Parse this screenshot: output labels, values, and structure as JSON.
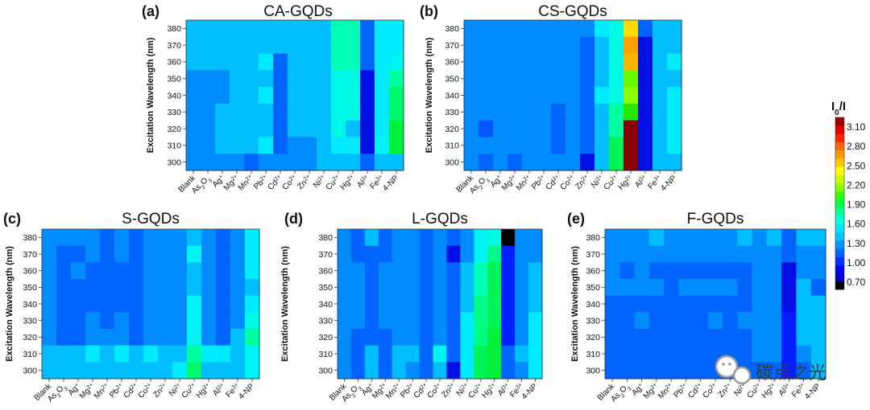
{
  "chart_data": [
    {
      "id": "a",
      "letter": "(a)",
      "type": "heatmap",
      "title": "CA-GQDs",
      "ylabel": "Excitation Wavelength (nm)",
      "yticks": [
        380,
        370,
        360,
        350,
        340,
        330,
        320,
        310,
        300
      ],
      "categories": [
        "Blank",
        "As2O3",
        "Ag+",
        "Mg2+",
        "Mn2+",
        "Pb2+",
        "Cd2+",
        "Co2+",
        "Zn2+",
        "Ni2+",
        "Cu2+",
        "Hg2+",
        "Al3+",
        "Fe3+",
        "4-NP"
      ],
      "values": [
        [
          1.18,
          1.18,
          1.18,
          1.18,
          1.18,
          1.18,
          1.18,
          1.18,
          1.18,
          1.18,
          1.55,
          1.55,
          1.0,
          1.3,
          1.3
        ],
        [
          1.18,
          1.18,
          1.18,
          1.18,
          1.18,
          1.18,
          1.18,
          1.18,
          1.18,
          1.18,
          1.55,
          1.55,
          1.0,
          1.3,
          1.3
        ],
        [
          1.18,
          1.18,
          1.18,
          1.18,
          1.18,
          1.3,
          1.0,
          1.18,
          1.18,
          1.18,
          1.55,
          1.55,
          1.0,
          1.3,
          1.35
        ],
        [
          1.08,
          1.08,
          1.08,
          1.18,
          1.18,
          1.18,
          1.0,
          1.18,
          1.18,
          1.18,
          1.4,
          1.4,
          0.85,
          1.3,
          1.6
        ],
        [
          1.08,
          1.08,
          1.08,
          1.18,
          1.18,
          1.3,
          1.0,
          1.18,
          1.18,
          1.18,
          1.4,
          1.4,
          0.85,
          1.3,
          1.7
        ],
        [
          1.08,
          1.08,
          1.18,
          1.18,
          1.18,
          1.18,
          1.0,
          1.18,
          1.18,
          1.18,
          1.4,
          1.4,
          0.85,
          1.3,
          1.7
        ],
        [
          1.08,
          1.08,
          1.18,
          1.18,
          1.18,
          1.18,
          1.0,
          1.18,
          1.18,
          1.18,
          1.4,
          1.18,
          0.85,
          1.3,
          1.8
        ],
        [
          1.08,
          1.08,
          1.18,
          1.18,
          1.18,
          1.3,
          1.0,
          1.08,
          1.08,
          1.18,
          1.3,
          1.3,
          0.85,
          1.35,
          1.8
        ],
        [
          1.08,
          1.08,
          1.08,
          1.08,
          1.0,
          1.08,
          1.08,
          1.08,
          1.08,
          1.18,
          1.18,
          1.18,
          1.0,
          1.18,
          1.18
        ]
      ]
    },
    {
      "id": "b",
      "letter": "(b)",
      "type": "heatmap",
      "title": "CS-GQDs",
      "ylabel": "Excitation Wavelength (nm)",
      "yticks": [
        380,
        370,
        360,
        350,
        340,
        330,
        320,
        310,
        300
      ],
      "categories": [
        "Blank",
        "As2O3",
        "Ag+",
        "Mg2+",
        "Mn2+",
        "Pb2+",
        "Cd2+",
        "Co2+",
        "Zn2+",
        "Ni2+",
        "Cu2+",
        "Hg2+",
        "Al3+",
        "Fe3+",
        "4-NP"
      ],
      "values": [
        [
          1.08,
          1.08,
          1.08,
          1.08,
          1.08,
          1.08,
          1.08,
          1.08,
          1.08,
          1.3,
          1.4,
          2.5,
          1.0,
          1.18,
          1.18
        ],
        [
          1.08,
          1.08,
          1.08,
          1.08,
          1.08,
          1.08,
          1.08,
          1.08,
          1.0,
          1.18,
          1.4,
          2.65,
          0.85,
          1.18,
          1.18
        ],
        [
          1.08,
          1.08,
          1.08,
          1.08,
          1.08,
          1.08,
          1.08,
          1.08,
          1.0,
          1.18,
          1.4,
          2.6,
          0.85,
          1.18,
          1.3
        ],
        [
          1.08,
          1.08,
          1.08,
          1.08,
          1.08,
          1.08,
          1.08,
          1.08,
          1.0,
          1.18,
          1.4,
          2.05,
          0.85,
          1.18,
          1.18
        ],
        [
          1.08,
          1.08,
          1.08,
          1.08,
          1.08,
          1.08,
          1.08,
          1.08,
          1.0,
          1.3,
          1.4,
          2.1,
          0.85,
          1.18,
          1.3
        ],
        [
          1.08,
          1.08,
          1.08,
          1.08,
          1.08,
          1.08,
          1.0,
          1.08,
          1.0,
          1.18,
          1.6,
          1.95,
          0.85,
          1.18,
          1.3
        ],
        [
          1.08,
          0.98,
          1.08,
          1.08,
          1.08,
          1.08,
          1.0,
          1.08,
          1.0,
          1.18,
          1.6,
          3.2,
          0.85,
          1.18,
          1.3
        ],
        [
          1.08,
          1.08,
          1.08,
          1.08,
          1.08,
          1.08,
          1.0,
          1.08,
          1.0,
          1.18,
          1.75,
          3.2,
          0.85,
          1.18,
          1.3
        ],
        [
          1.08,
          1.0,
          1.08,
          1.0,
          1.08,
          1.08,
          1.08,
          1.08,
          0.85,
          1.18,
          1.75,
          3.2,
          0.85,
          1.18,
          1.18
        ]
      ]
    },
    {
      "id": "c",
      "letter": "(c)",
      "type": "heatmap",
      "title": "S-GQDs",
      "ylabel": "Excitation Wavelength (nm)",
      "yticks": [
        380,
        370,
        360,
        350,
        340,
        330,
        320,
        310,
        300
      ],
      "categories": [
        "Blank",
        "As2O3",
        "Ag+",
        "Mg2+",
        "Mn2+",
        "Pb2+",
        "Cd2+",
        "Co2+",
        "Zn2+",
        "Ni2+",
        "Cu2+",
        "Hg2+",
        "Al3+",
        "Fe3+",
        "4-NP"
      ],
      "values": [
        [
          1.08,
          1.08,
          1.08,
          1.08,
          1.0,
          1.08,
          1.0,
          1.08,
          1.08,
          1.08,
          1.18,
          1.08,
          1.0,
          1.08,
          1.3
        ],
        [
          1.08,
          1.0,
          1.0,
          1.08,
          1.0,
          1.08,
          1.0,
          1.08,
          1.08,
          1.08,
          1.35,
          1.08,
          1.0,
          1.08,
          1.3
        ],
        [
          1.08,
          1.0,
          1.08,
          1.0,
          1.0,
          1.0,
          1.0,
          1.08,
          1.08,
          1.08,
          1.18,
          1.08,
          1.0,
          1.08,
          1.3
        ],
        [
          1.08,
          1.0,
          1.0,
          1.0,
          1.0,
          1.0,
          1.0,
          1.08,
          1.08,
          1.08,
          1.18,
          1.08,
          1.0,
          1.08,
          1.18
        ],
        [
          1.08,
          1.0,
          1.0,
          1.0,
          1.0,
          1.0,
          1.0,
          1.08,
          1.08,
          1.08,
          1.35,
          1.08,
          1.0,
          1.08,
          1.3
        ],
        [
          1.08,
          1.0,
          1.0,
          1.08,
          1.0,
          1.08,
          1.0,
          1.08,
          1.08,
          1.08,
          1.35,
          1.08,
          1.0,
          1.08,
          1.4
        ],
        [
          1.08,
          1.0,
          1.0,
          1.08,
          1.08,
          1.08,
          1.0,
          1.08,
          1.08,
          1.08,
          1.35,
          1.08,
          1.0,
          1.18,
          1.6
        ],
        [
          1.18,
          1.18,
          1.18,
          1.3,
          1.18,
          1.3,
          1.18,
          1.3,
          1.18,
          1.18,
          1.6,
          1.3,
          1.3,
          1.18,
          1.35
        ],
        [
          1.18,
          1.18,
          1.18,
          1.18,
          1.18,
          1.18,
          1.18,
          1.18,
          1.18,
          1.3,
          1.7,
          1.18,
          1.18,
          1.18,
          1.35
        ]
      ]
    },
    {
      "id": "d",
      "letter": "(d)",
      "type": "heatmap",
      "title": "L-GQDs",
      "ylabel": "Excitation Wavelength (nm)",
      "yticks": [
        380,
        370,
        360,
        350,
        340,
        330,
        320,
        310,
        300
      ],
      "categories": [
        "Blank",
        "As2O3",
        "Ag+",
        "Mg2+",
        "Mn2+",
        "Pb2+",
        "Cd2+",
        "Co2+",
        "Zn2+",
        "Ni2+",
        "Cu2+",
        "Hg2+",
        "Al3+",
        "Fe3+",
        "4-NP"
      ],
      "values": [
        [
          1.08,
          1.0,
          1.18,
          1.0,
          1.08,
          1.08,
          1.0,
          1.08,
          1.0,
          1.08,
          1.35,
          1.4,
          0.7,
          1.08,
          1.08
        ],
        [
          1.08,
          1.0,
          1.0,
          1.0,
          1.08,
          1.08,
          1.0,
          1.08,
          0.85,
          1.08,
          1.35,
          1.65,
          0.9,
          1.08,
          1.08
        ],
        [
          1.08,
          1.08,
          1.0,
          1.08,
          1.08,
          1.08,
          1.0,
          1.08,
          1.0,
          1.18,
          1.55,
          1.75,
          0.9,
          1.08,
          1.18
        ],
        [
          1.08,
          1.08,
          1.0,
          1.08,
          1.08,
          1.08,
          1.0,
          1.08,
          1.0,
          1.18,
          1.55,
          1.75,
          0.9,
          1.08,
          1.18
        ],
        [
          1.08,
          1.08,
          1.0,
          1.08,
          1.08,
          1.08,
          1.0,
          1.08,
          1.0,
          1.18,
          1.65,
          1.75,
          0.9,
          1.08,
          1.18
        ],
        [
          1.08,
          1.08,
          1.0,
          1.08,
          1.08,
          1.08,
          1.0,
          1.08,
          1.0,
          1.3,
          1.65,
          1.75,
          0.9,
          1.08,
          1.3
        ],
        [
          1.08,
          1.0,
          1.0,
          1.0,
          1.08,
          1.08,
          1.0,
          1.08,
          1.0,
          1.3,
          1.65,
          1.8,
          0.9,
          1.08,
          1.3
        ],
        [
          1.08,
          1.0,
          1.18,
          1.0,
          1.18,
          1.18,
          1.0,
          1.35,
          1.0,
          1.3,
          1.75,
          1.8,
          1.0,
          1.18,
          1.3
        ],
        [
          1.08,
          1.0,
          1.18,
          1.0,
          1.18,
          1.08,
          1.0,
          1.18,
          0.85,
          1.3,
          1.75,
          1.8,
          1.0,
          1.08,
          1.3
        ]
      ]
    },
    {
      "id": "e",
      "letter": "(e)",
      "type": "heatmap",
      "title": "F-GQDs",
      "ylabel": "Excitation Wavelength (nm)",
      "yticks": [
        380,
        370,
        360,
        350,
        340,
        330,
        320,
        310,
        300
      ],
      "categories": [
        "Blank",
        "As2O3",
        "Ag+",
        "Mg2+",
        "Mn2+",
        "Pb2+",
        "Cd2+",
        "Co2+",
        "Zn2+",
        "Ni2+",
        "Cu2+",
        "Hg2+",
        "Al3+",
        "Fe3+",
        "4-NP"
      ],
      "values": [
        [
          1.08,
          1.08,
          1.08,
          1.18,
          1.08,
          1.08,
          1.08,
          1.08,
          1.08,
          1.18,
          1.08,
          1.18,
          1.0,
          1.18,
          1.18
        ],
        [
          1.08,
          1.08,
          1.08,
          1.08,
          1.08,
          1.08,
          1.08,
          1.08,
          1.08,
          1.08,
          1.08,
          1.08,
          1.0,
          1.08,
          1.08
        ],
        [
          1.08,
          1.0,
          1.08,
          1.0,
          1.0,
          1.0,
          1.0,
          1.0,
          1.0,
          1.0,
          1.08,
          1.08,
          0.85,
          1.08,
          1.08
        ],
        [
          1.08,
          1.08,
          1.08,
          1.08,
          1.0,
          1.08,
          1.08,
          1.08,
          1.08,
          1.0,
          1.08,
          1.08,
          0.85,
          1.18,
          1.0
        ],
        [
          1.0,
          1.0,
          1.0,
          1.0,
          1.0,
          1.0,
          1.0,
          1.0,
          1.0,
          1.0,
          1.08,
          1.08,
          0.85,
          1.18,
          1.18
        ],
        [
          1.0,
          1.0,
          1.08,
          1.0,
          1.0,
          1.0,
          1.0,
          1.08,
          1.0,
          1.08,
          1.08,
          1.08,
          0.9,
          1.18,
          1.18
        ],
        [
          1.0,
          1.0,
          1.0,
          1.0,
          1.0,
          1.0,
          1.0,
          1.0,
          1.0,
          1.0,
          1.08,
          1.08,
          0.9,
          1.18,
          1.18
        ],
        [
          1.0,
          1.0,
          1.0,
          1.0,
          1.0,
          1.0,
          1.0,
          1.0,
          1.0,
          1.0,
          1.08,
          1.08,
          0.9,
          1.08,
          1.18
        ],
        [
          1.0,
          1.0,
          1.0,
          1.0,
          1.0,
          1.0,
          1.0,
          1.0,
          1.0,
          1.0,
          1.0,
          1.0,
          0.9,
          1.0,
          1.18
        ]
      ]
    }
  ],
  "colorbar": {
    "title": "I0/I",
    "ticks": [
      "3.10",
      "2.80",
      "2.50",
      "2.20",
      "1.90",
      "1.60",
      "1.30",
      "1.00",
      "0.70"
    ],
    "colors": [
      "#000000",
      "#0000c8",
      "#0000ff",
      "#0032ff",
      "#0064ff",
      "#0096ff",
      "#00c8ff",
      "#00e6ff",
      "#00ffd9",
      "#00ff99",
      "#00ff40",
      "#33ff00",
      "#8cff00",
      "#ccff00",
      "#ffff00",
      "#ffcc00",
      "#ff9900",
      "#ff6600",
      "#ff2600",
      "#e60000",
      "#a00000"
    ]
  },
  "watermark": {
    "text": "碳点之光",
    "icon": "wechat-icon"
  }
}
